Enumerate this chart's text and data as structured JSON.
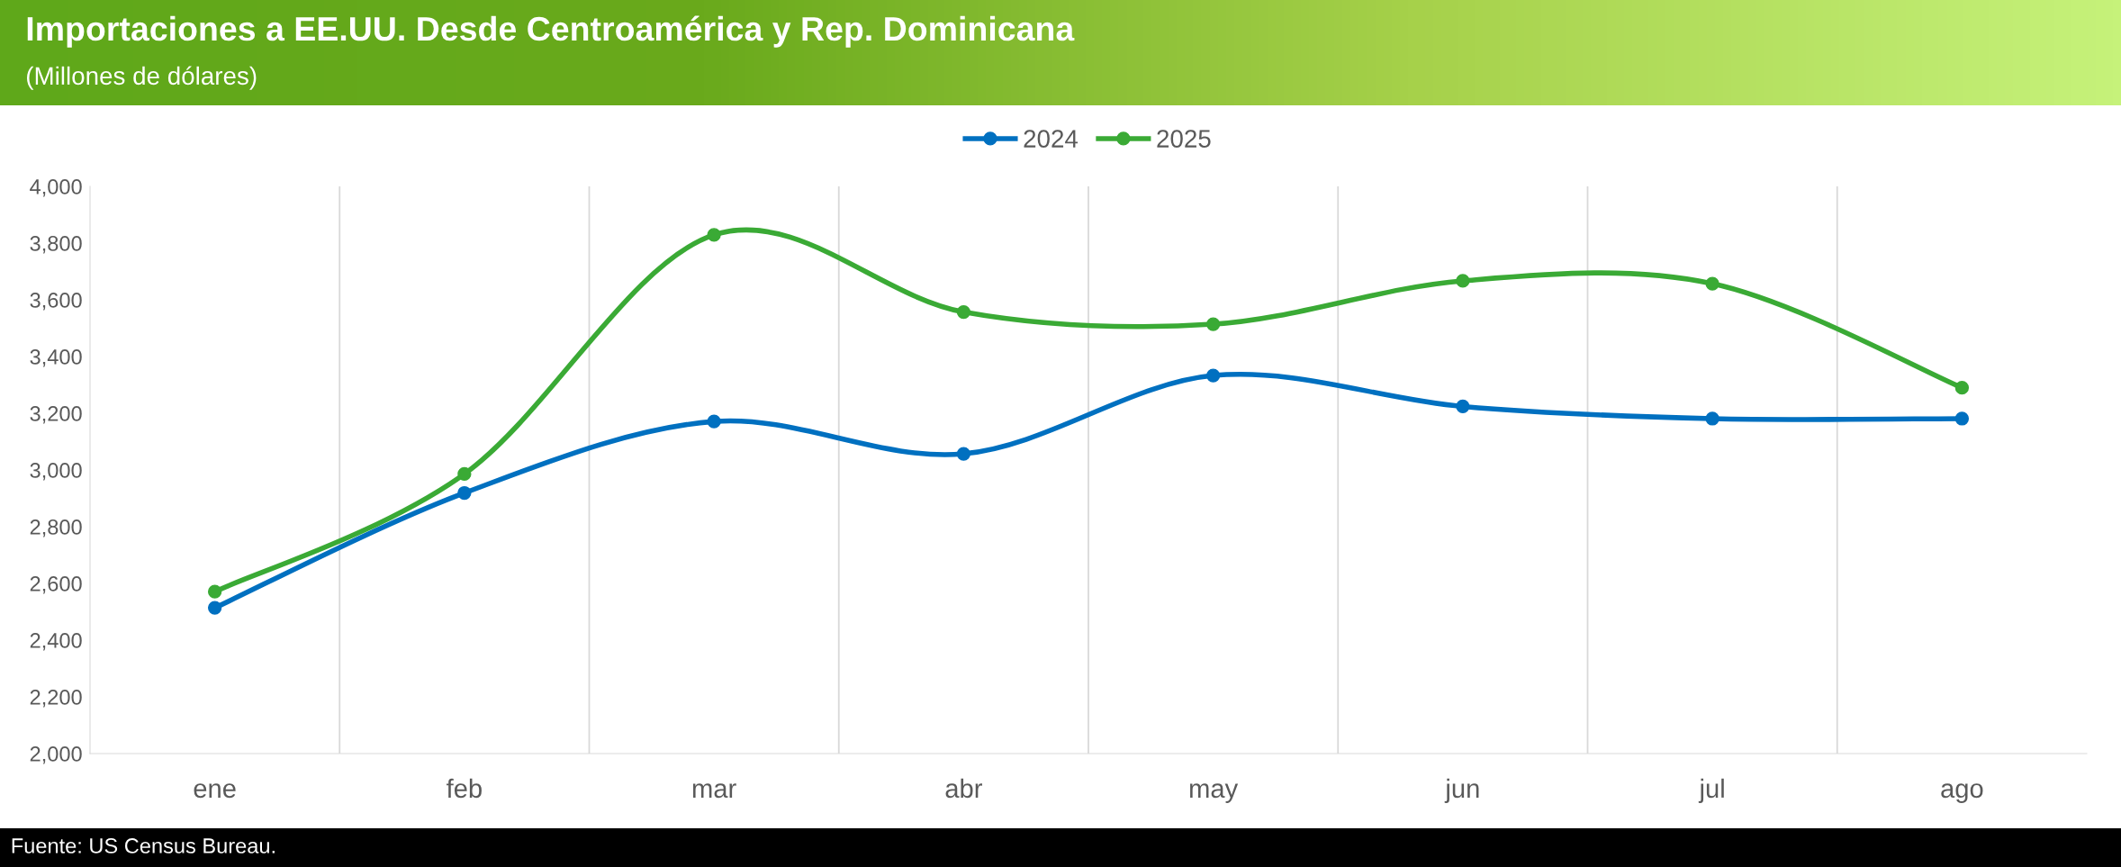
{
  "chart_data": {
    "type": "line",
    "title": "Importaciones a EE.UU. Desde Centroamérica y Rep. Dominicana",
    "subtitle": "(Millones de dólares)",
    "categories": [
      "ene",
      "feb",
      "mar",
      "abr",
      "may",
      "jun",
      "jul",
      "ago"
    ],
    "series": [
      {
        "name": "2024",
        "color": "#0070c0",
        "values": [
          2514,
          2919,
          3171,
          3057,
          3333,
          3224,
          3181,
          3181
        ]
      },
      {
        "name": "2025",
        "color": "#3aaa35",
        "values": [
          2571,
          2986,
          3829,
          3557,
          3514,
          3667,
          3657,
          3290
        ]
      }
    ],
    "ylim": [
      2000,
      4000
    ],
    "yticks": [
      {
        "value": 2000,
        "label": "2,000"
      },
      {
        "value": 2200,
        "label": "2,200"
      },
      {
        "value": 2400,
        "label": "2,400"
      },
      {
        "value": 2600,
        "label": "2,600"
      },
      {
        "value": 2800,
        "label": "2,800"
      },
      {
        "value": 3000,
        "label": "3,000"
      },
      {
        "value": 3200,
        "label": "3,200"
      },
      {
        "value": 3400,
        "label": "3,400"
      },
      {
        "value": 3600,
        "label": "3,600"
      },
      {
        "value": 3800,
        "label": "3,800"
      },
      {
        "value": 4000,
        "label": "4,000"
      }
    ],
    "grid": "x",
    "legend": "top",
    "marker": "circle",
    "line_style": "solid",
    "annotations": [
      "Fuente: US Census Bureau."
    ]
  }
}
